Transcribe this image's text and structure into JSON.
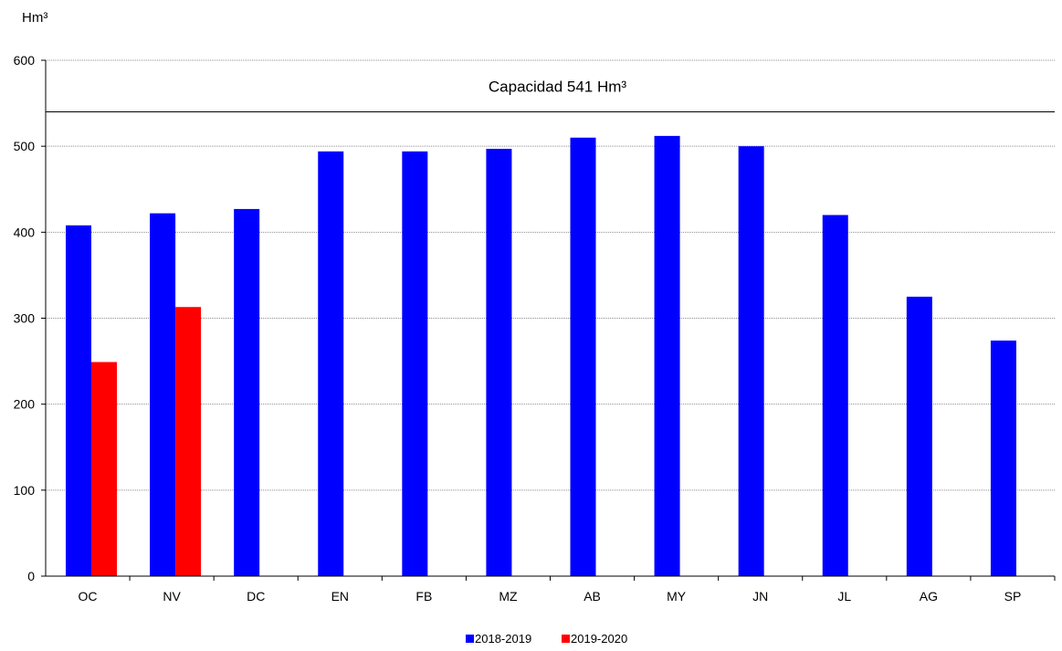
{
  "chart_data": {
    "type": "bar",
    "unit_label": "Hm³",
    "categories": [
      "OC",
      "NV",
      "DC",
      "EN",
      "FB",
      "MZ",
      "AB",
      "MY",
      "JN",
      "JL",
      "AG",
      "SP"
    ],
    "series": [
      {
        "name": "2018-2019",
        "color": "#0000ff",
        "values": [
          408,
          422,
          427,
          494,
          494,
          497,
          510,
          512,
          500,
          420,
          325,
          274
        ]
      },
      {
        "name": "2019-2020",
        "color": "#ff0000",
        "values": [
          249,
          313,
          null,
          null,
          null,
          null,
          null,
          null,
          null,
          null,
          null,
          null
        ]
      }
    ],
    "ylim": [
      0,
      600
    ],
    "yticks": [
      0,
      100,
      200,
      300,
      400,
      500,
      600
    ],
    "grid": true,
    "reference_line": {
      "value": 540,
      "label": "Capacidad 541 Hm³"
    },
    "legend_position": "bottom-center"
  }
}
